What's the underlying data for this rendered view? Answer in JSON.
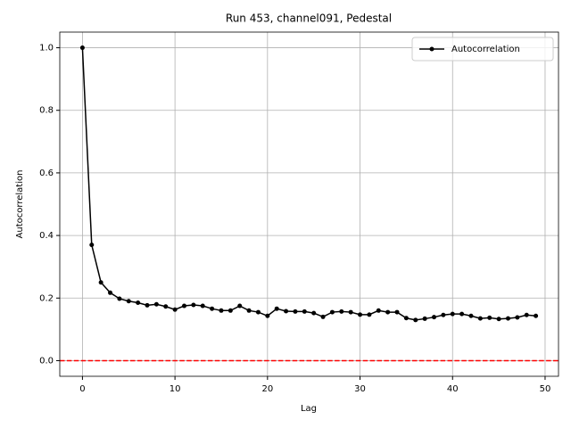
{
  "chart_data": {
    "type": "line",
    "title": "Run 453, channel091, Pedestal",
    "x_label": "Lag",
    "y_label": "Autocorrelation",
    "x": [
      0,
      1,
      2,
      3,
      4,
      5,
      6,
      7,
      8,
      9,
      10,
      11,
      12,
      13,
      14,
      15,
      16,
      17,
      18,
      19,
      20,
      21,
      22,
      23,
      24,
      25,
      26,
      27,
      28,
      29,
      30,
      31,
      32,
      33,
      34,
      35,
      36,
      37,
      38,
      39,
      40,
      41,
      42,
      43,
      44,
      45,
      46,
      47,
      48,
      49
    ],
    "series": [
      {
        "name": "Autocorrelation",
        "color": "#000000",
        "values": [
          1.0,
          0.37,
          0.25,
          0.217,
          0.198,
          0.19,
          0.185,
          0.177,
          0.18,
          0.173,
          0.163,
          0.175,
          0.178,
          0.175,
          0.166,
          0.16,
          0.16,
          0.175,
          0.16,
          0.155,
          0.143,
          0.166,
          0.158,
          0.157,
          0.157,
          0.152,
          0.14,
          0.155,
          0.157,
          0.155,
          0.147,
          0.147,
          0.16,
          0.155,
          0.155,
          0.136,
          0.13,
          0.134,
          0.139,
          0.146,
          0.149,
          0.149,
          0.143,
          0.135,
          0.137,
          0.133,
          0.135,
          0.138,
          0.146,
          0.143
        ]
      }
    ],
    "hline": {
      "value": 0,
      "color": "#ff0000"
    },
    "xlim": [
      -2.45,
      51.45
    ],
    "ylim": [
      -0.05,
      1.05
    ],
    "xticks": [
      0,
      10,
      20,
      30,
      40,
      50
    ],
    "yticks": [
      {
        "value": 0,
        "label": "0.0"
      },
      {
        "value": 0.2,
        "label": "0.2"
      },
      {
        "value": 0.4,
        "label": "0.4"
      },
      {
        "value": 0.6,
        "label": "0.6"
      },
      {
        "value": 0.8,
        "label": "0.8"
      },
      {
        "value": 1,
        "label": "1.0"
      }
    ],
    "grid": true,
    "legend": "upper right"
  }
}
